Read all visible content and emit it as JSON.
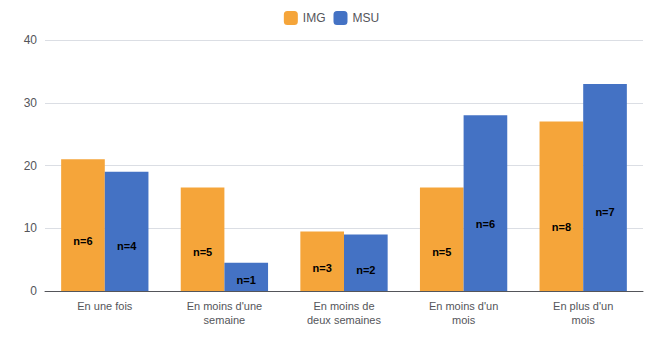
{
  "chart_data": {
    "type": "bar",
    "categories": [
      "En une fois",
      "En moins d'une\nsemaine",
      "En moins de\ndeux semaines",
      "En moins d'un\nmois",
      "En plus d'un\nmois"
    ],
    "series": [
      {
        "name": "IMG",
        "color": "#F5A53A",
        "values": [
          21.0,
          16.5,
          9.5,
          16.5,
          27.0
        ],
        "labels": [
          "n=6",
          "n=5",
          "n=3",
          "n=5",
          "n=8"
        ]
      },
      {
        "name": "MSU",
        "color": "#4472C4",
        "values": [
          19.0,
          4.5,
          9.0,
          28.0,
          33.0
        ],
        "labels": [
          "n=4",
          "n=1",
          "n=2",
          "n=6",
          "n=7"
        ]
      }
    ],
    "ylim": [
      0,
      40
    ],
    "yticks": [
      0,
      10,
      20,
      30,
      40
    ],
    "grid": true,
    "legend": "top"
  }
}
